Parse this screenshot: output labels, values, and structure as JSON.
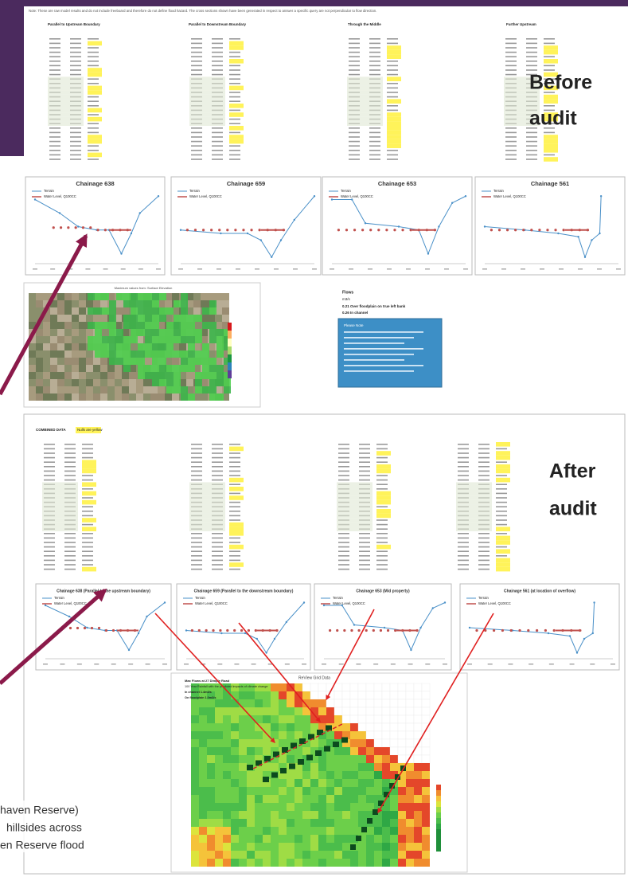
{
  "before": {
    "label": [
      "Before",
      "audit"
    ],
    "note": "Note: These are raw model results and do not include freeboard and therefore do not define flood hazard. The cross sections shown have been generated in respect to answer a specific query are not perpendicular to flow direction.",
    "sections": [
      "Parallel to Upstream Boundary",
      "Parallel to Downstream Boundary",
      "Through the Middle",
      "Further Upstream"
    ],
    "charts": [
      "Chainage 638",
      "Chainage 659",
      "Chainage 653",
      "Chainage 561"
    ],
    "legend": [
      "Terrain",
      "Water Level, Q100CC"
    ],
    "map_title": "Maximum values from: Surface Elevation",
    "flows": [
      "Flows",
      "m3/s",
      "0.21  Over floodplain on true left bank",
      "0.26  In channel"
    ],
    "note_box_title": "Please Note"
  },
  "after": {
    "label": [
      "After",
      "audit"
    ],
    "table_title": "COMBINED DATA",
    "nulls_note": "Nulls are yellow",
    "charts": [
      "Chainage 638 (Parallel to the upstream boundary)",
      "Chainage 659 (Parallel to the downstream boundary)",
      "Chainage 653 (Mid property)",
      "Chainage 561 (at location of overflow)"
    ],
    "legend": [
      "Terrain",
      "Water Level, Q100CC"
    ],
    "map_title": "ReView Grid Data",
    "flows": [
      "Max Flows at 27 Dimple Road",
      "100 Year Rainfall with the predicted impacts of climate change",
      "In channel   1.4m3/s",
      "On floodplain   1.0m3/s"
    ]
  },
  "caption": [
    "haven Reserve)",
    "hillsides across",
    "en Reserve flood"
  ]
}
